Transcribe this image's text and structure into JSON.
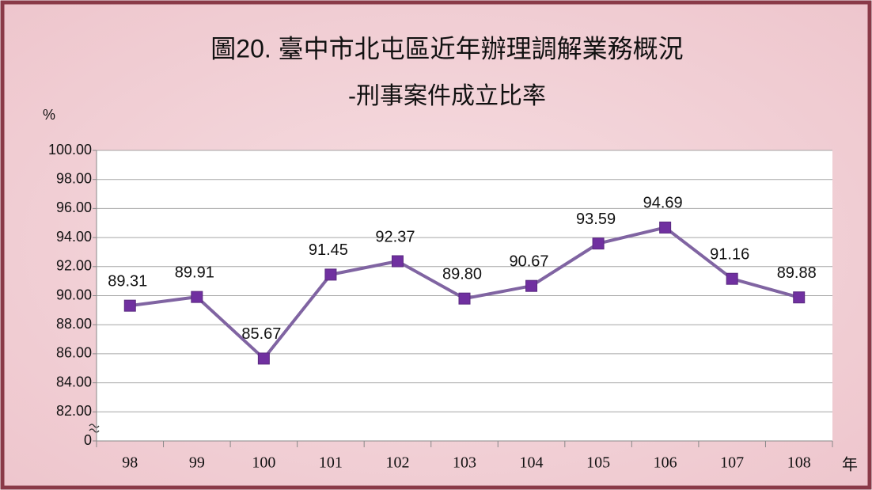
{
  "chart_data": {
    "type": "line",
    "title": "圖20. 臺中市北屯區近年辦理調解業務概況",
    "subtitle": "-刑事案件成立比率",
    "y_axis_label": "%",
    "x_axis_label": "年",
    "categories": [
      "98",
      "99",
      "100",
      "101",
      "102",
      "103",
      "104",
      "105",
      "106",
      "107",
      "108"
    ],
    "series": [
      {
        "name": "刑事案件成立比率",
        "color": "#8064a2",
        "marker_color": "#7030a0",
        "values": [
          89.31,
          89.91,
          85.67,
          91.45,
          92.37,
          89.8,
          90.67,
          93.59,
          94.69,
          91.16,
          89.88
        ],
        "value_labels": [
          "89.31",
          "89.91",
          "85.67",
          "91.45",
          "92.37",
          "89.80",
          "90.67",
          "93.59",
          "94.69",
          "91.16",
          "89.88"
        ]
      }
    ],
    "ylim": [
      0,
      100
    ],
    "axis_break": [
      0,
      80
    ],
    "yticks": [
      0,
      {
        "value": 82,
        "label": "82.00"
      },
      {
        "value": 84,
        "label": "84.00"
      },
      {
        "value": 86,
        "label": "86.00"
      },
      {
        "value": 88,
        "label": "88.00"
      },
      {
        "value": 90,
        "label": "90.00"
      },
      {
        "value": 92,
        "label": "92.00"
      },
      {
        "value": 94,
        "label": "94.00"
      },
      {
        "value": 96,
        "label": "96.00"
      },
      {
        "value": 98,
        "label": "98.00"
      },
      {
        "value": 100,
        "label": "100.00"
      }
    ],
    "grid": true
  }
}
